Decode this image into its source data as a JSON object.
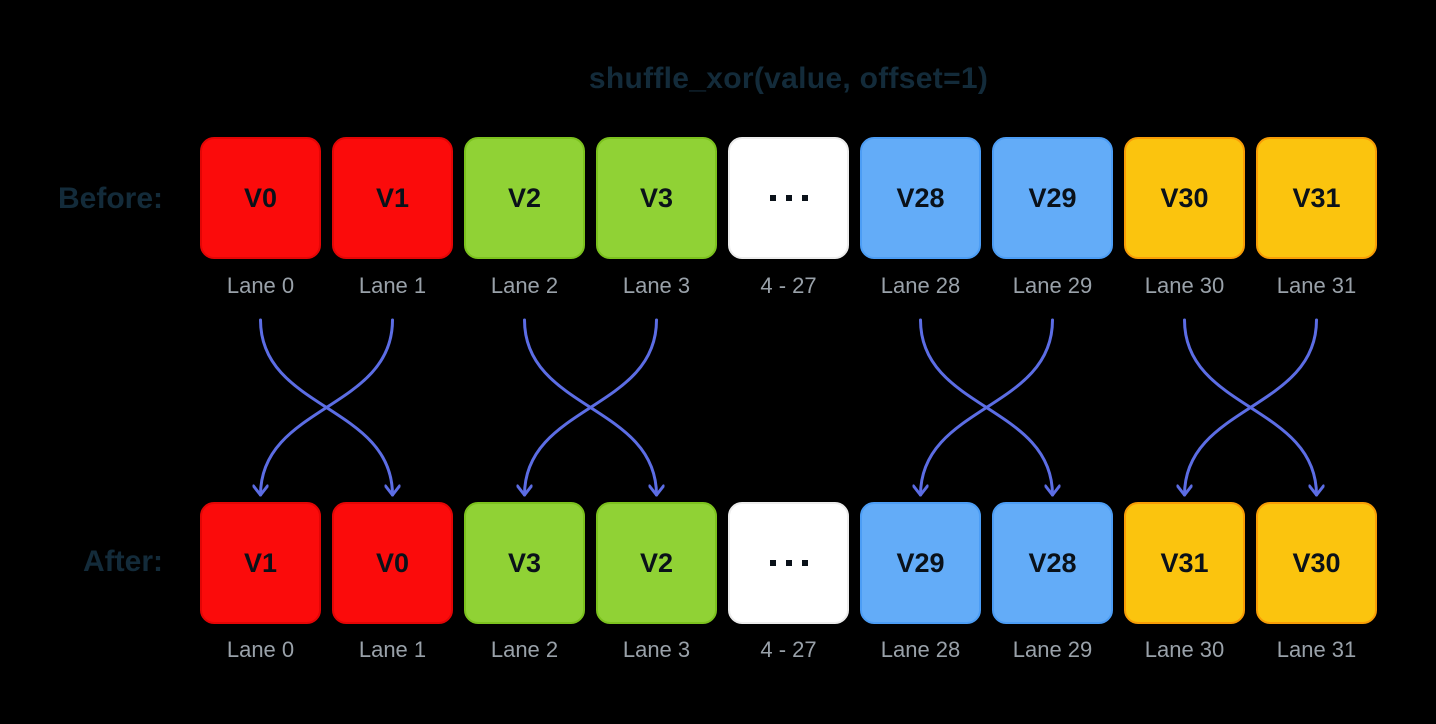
{
  "title": "shuffle_xor(value, offset=1)",
  "before": {
    "label": "Before:",
    "values": [
      "V0",
      "V1",
      "V2",
      "V3",
      "···",
      "V28",
      "V29",
      "V30",
      "V31"
    ]
  },
  "after": {
    "label": "After:",
    "values": [
      "V1",
      "V0",
      "V3",
      "V2",
      "···",
      "V29",
      "V28",
      "V31",
      "V30"
    ]
  },
  "lane_labels": [
    "Lane 0",
    "Lane 1",
    "Lane 2",
    "Lane 3",
    "4 - 27",
    "Lane 28",
    "Lane 29",
    "Lane 30",
    "Lane 31"
  ],
  "lane_colors": [
    "red",
    "red",
    "green",
    "green",
    "white",
    "blue",
    "blue",
    "yellow",
    "yellow"
  ],
  "palette": {
    "red": {
      "fill": "#FB0B0B",
      "border": "#E30505"
    },
    "green": {
      "fill": "#90D235",
      "border": "#7CC21E"
    },
    "white": {
      "fill": "#FFFFFF",
      "border": "#ECECEC"
    },
    "blue": {
      "fill": "#63ACF8",
      "border": "#4C9DF5"
    },
    "yellow": {
      "fill": "#FBC40E",
      "border": "#F89D06"
    }
  },
  "swap_pairs": [
    [
      0,
      1
    ],
    [
      2,
      3
    ],
    [
      5,
      6
    ],
    [
      7,
      8
    ]
  ],
  "colors": {
    "background": "#000000",
    "heading_text": "#132B3A",
    "box_text": "#0A1119",
    "lane_label_text": "#99A1A9",
    "arrow": "#5C6DE4"
  }
}
